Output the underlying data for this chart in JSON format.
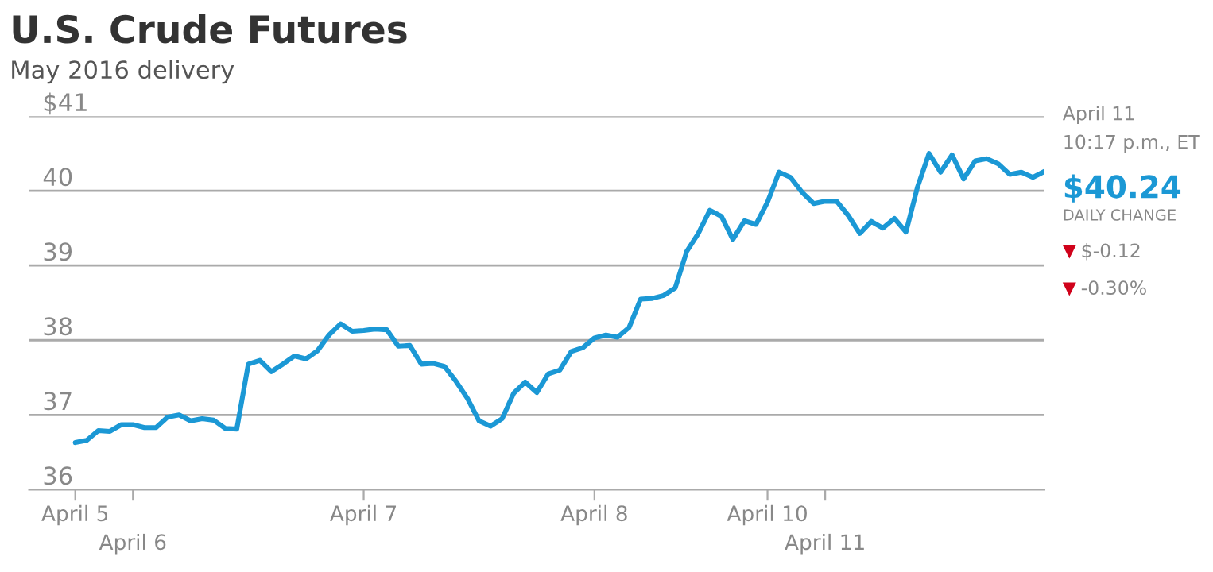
{
  "chart_data": {
    "type": "line",
    "title": "U.S. Crude Futures",
    "subtitle": "May 2016 delivery",
    "annotations": [
      "April 11",
      "10:17 p.m., ET",
      "$40.24",
      "DAILY CHANGE",
      "▼$-0.12",
      "▼-0.30%"
    ],
    "categories": [
      null,
      null,
      null,
      null,
      "April 5",
      null,
      null,
      null,
      null,
      "April 6",
      null,
      null,
      null,
      null,
      null,
      null,
      null,
      null,
      null,
      null,
      null,
      null,
      null,
      null,
      null,
      null,
      null,
      null,
      null,
      "April 7",
      null,
      null,
      null,
      null,
      null,
      null,
      null,
      null,
      null,
      null,
      null,
      null,
      null,
      null,
      null,
      null,
      null,
      null,
      null,
      "April 8",
      null,
      null,
      null,
      null,
      null,
      null,
      null,
      null,
      null,
      null,
      null,
      null,
      null,
      null,
      "April 10",
      null,
      null,
      null,
      null,
      "April 11",
      null,
      null,
      null,
      null,
      null,
      null,
      null,
      null,
      null,
      null,
      null,
      null,
      null,
      null,
      null,
      null,
      null,
      null,
      null
    ],
    "ylim": [
      36,
      41
    ],
    "yticks": [
      {
        "value": 36,
        "label": "36"
      },
      {
        "value": 37,
        "label": "37"
      },
      {
        "value": 38,
        "label": "38"
      },
      {
        "value": 39,
        "label": "39"
      },
      {
        "value": 40,
        "label": "40"
      },
      {
        "value": 41,
        "label": "$41"
      }
    ],
    "grid": "y",
    "series": [
      {
        "color": "#1b98d5",
        "values": [
          null,
          null,
          null,
          null,
          36.63,
          36.66,
          36.79,
          36.78,
          36.87,
          36.87,
          36.83,
          36.83,
          36.97,
          37.0,
          36.92,
          36.95,
          36.93,
          36.82,
          36.81,
          37.68,
          37.73,
          37.58,
          37.68,
          37.79,
          37.75,
          37.86,
          38.07,
          38.22,
          38.12,
          38.13,
          38.15,
          38.14,
          37.92,
          37.93,
          37.68,
          37.69,
          37.65,
          37.45,
          37.22,
          36.92,
          36.85,
          36.95,
          37.29,
          37.44,
          37.3,
          37.55,
          37.6,
          37.85,
          37.9,
          38.03,
          38.07,
          38.04,
          38.17,
          38.55,
          38.56,
          38.6,
          38.7,
          39.19,
          39.43,
          39.74,
          39.66,
          39.35,
          39.6,
          39.55,
          39.85,
          40.25,
          40.18,
          39.98,
          39.83,
          39.86,
          39.86,
          39.67,
          39.43,
          39.59,
          39.5,
          39.63,
          39.45,
          40.05,
          40.5,
          40.25,
          40.48,
          40.16,
          40.4,
          40.43,
          40.36,
          40.22,
          40.25,
          40.18,
          40.26
        ]
      }
    ]
  }
}
